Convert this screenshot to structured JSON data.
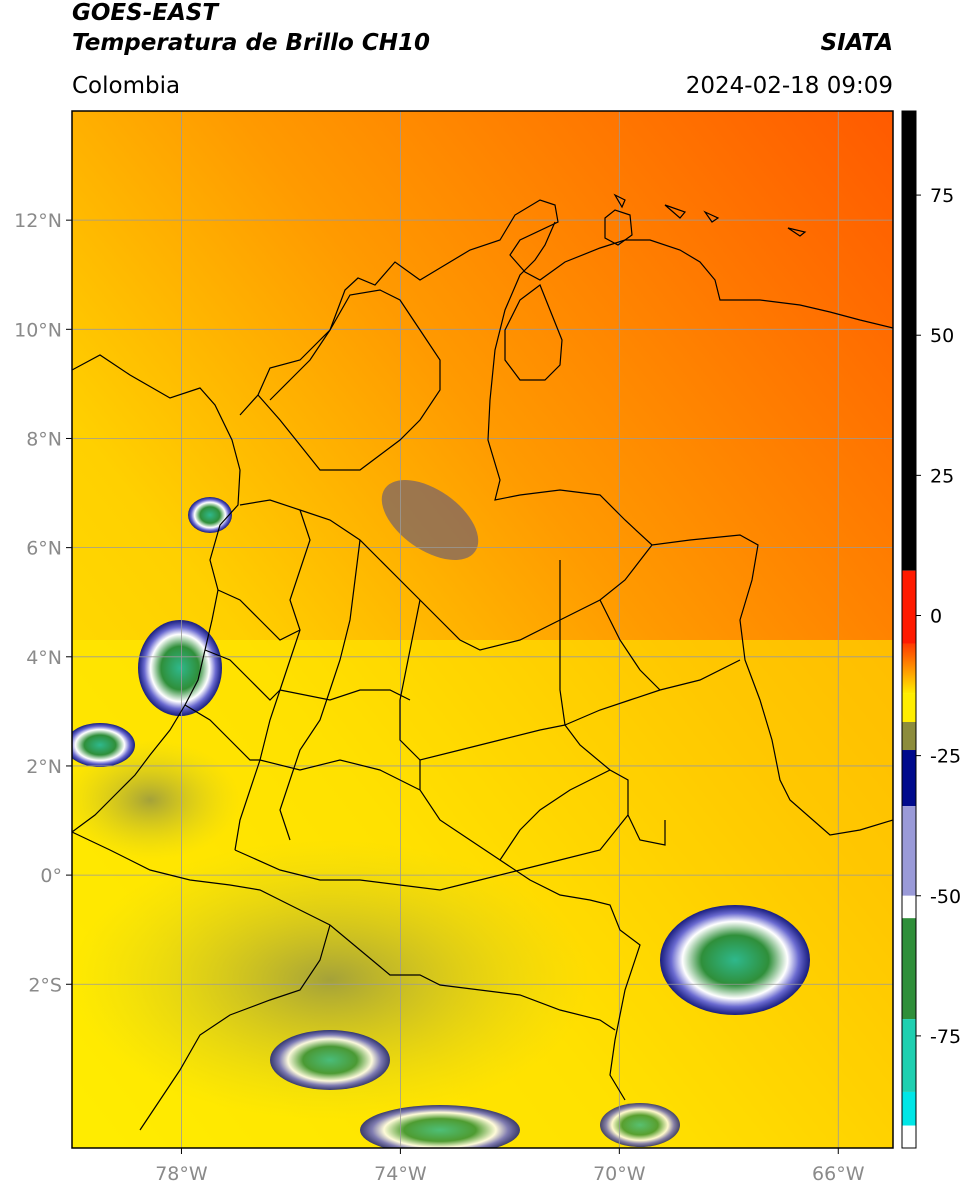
{
  "header": {
    "satellite": "GOES-EAST",
    "product": "Temperatura de Brillo CH10",
    "organization": "SIATA",
    "region": "Colombia",
    "datetime": "2024-02-18 09:09"
  },
  "map": {
    "lon_range": [
      -80,
      -65
    ],
    "lat_range": [
      -5,
      14
    ],
    "lon_ticks": [
      {
        "value": -78,
        "label": "78°W"
      },
      {
        "value": -74,
        "label": "74°W"
      },
      {
        "value": -70,
        "label": "70°W"
      },
      {
        "value": -66,
        "label": "66°W"
      }
    ],
    "lat_ticks": [
      {
        "value": 12,
        "label": "12°N"
      },
      {
        "value": 10,
        "label": "10°N"
      },
      {
        "value": 8,
        "label": "8°N"
      },
      {
        "value": 6,
        "label": "6°N"
      },
      {
        "value": 4,
        "label": "4°N"
      },
      {
        "value": 2,
        "label": "2°N"
      },
      {
        "value": 0,
        "label": "0°"
      },
      {
        "value": -2,
        "label": "2°S"
      }
    ],
    "grid": true
  },
  "colorbar": {
    "range": [
      -95,
      90
    ],
    "ticks": [
      {
        "value": 75,
        "label": "75"
      },
      {
        "value": 50,
        "label": "50"
      },
      {
        "value": 25,
        "label": "25"
      },
      {
        "value": 0,
        "label": "0"
      },
      {
        "value": -25,
        "label": "-25"
      },
      {
        "value": -50,
        "label": "-50"
      },
      {
        "value": -75,
        "label": "-75"
      }
    ],
    "colors": {
      "black": "#000000",
      "red": "#ff1a00",
      "orange": "#ff8c00",
      "yellow": "#ffee00",
      "olive": "#8c8c3c",
      "navy": "#000a8c",
      "white": "#ffffff",
      "green": "#2f8f3a",
      "teal": "#1fcfb0",
      "cyan": "#00e6e6"
    }
  },
  "colors": {
    "warm_field": "#ff6a00",
    "mid_field": "#ffb000",
    "cold_field": "#ffee00",
    "grid": "#9a9a9a",
    "border": "#000000"
  }
}
